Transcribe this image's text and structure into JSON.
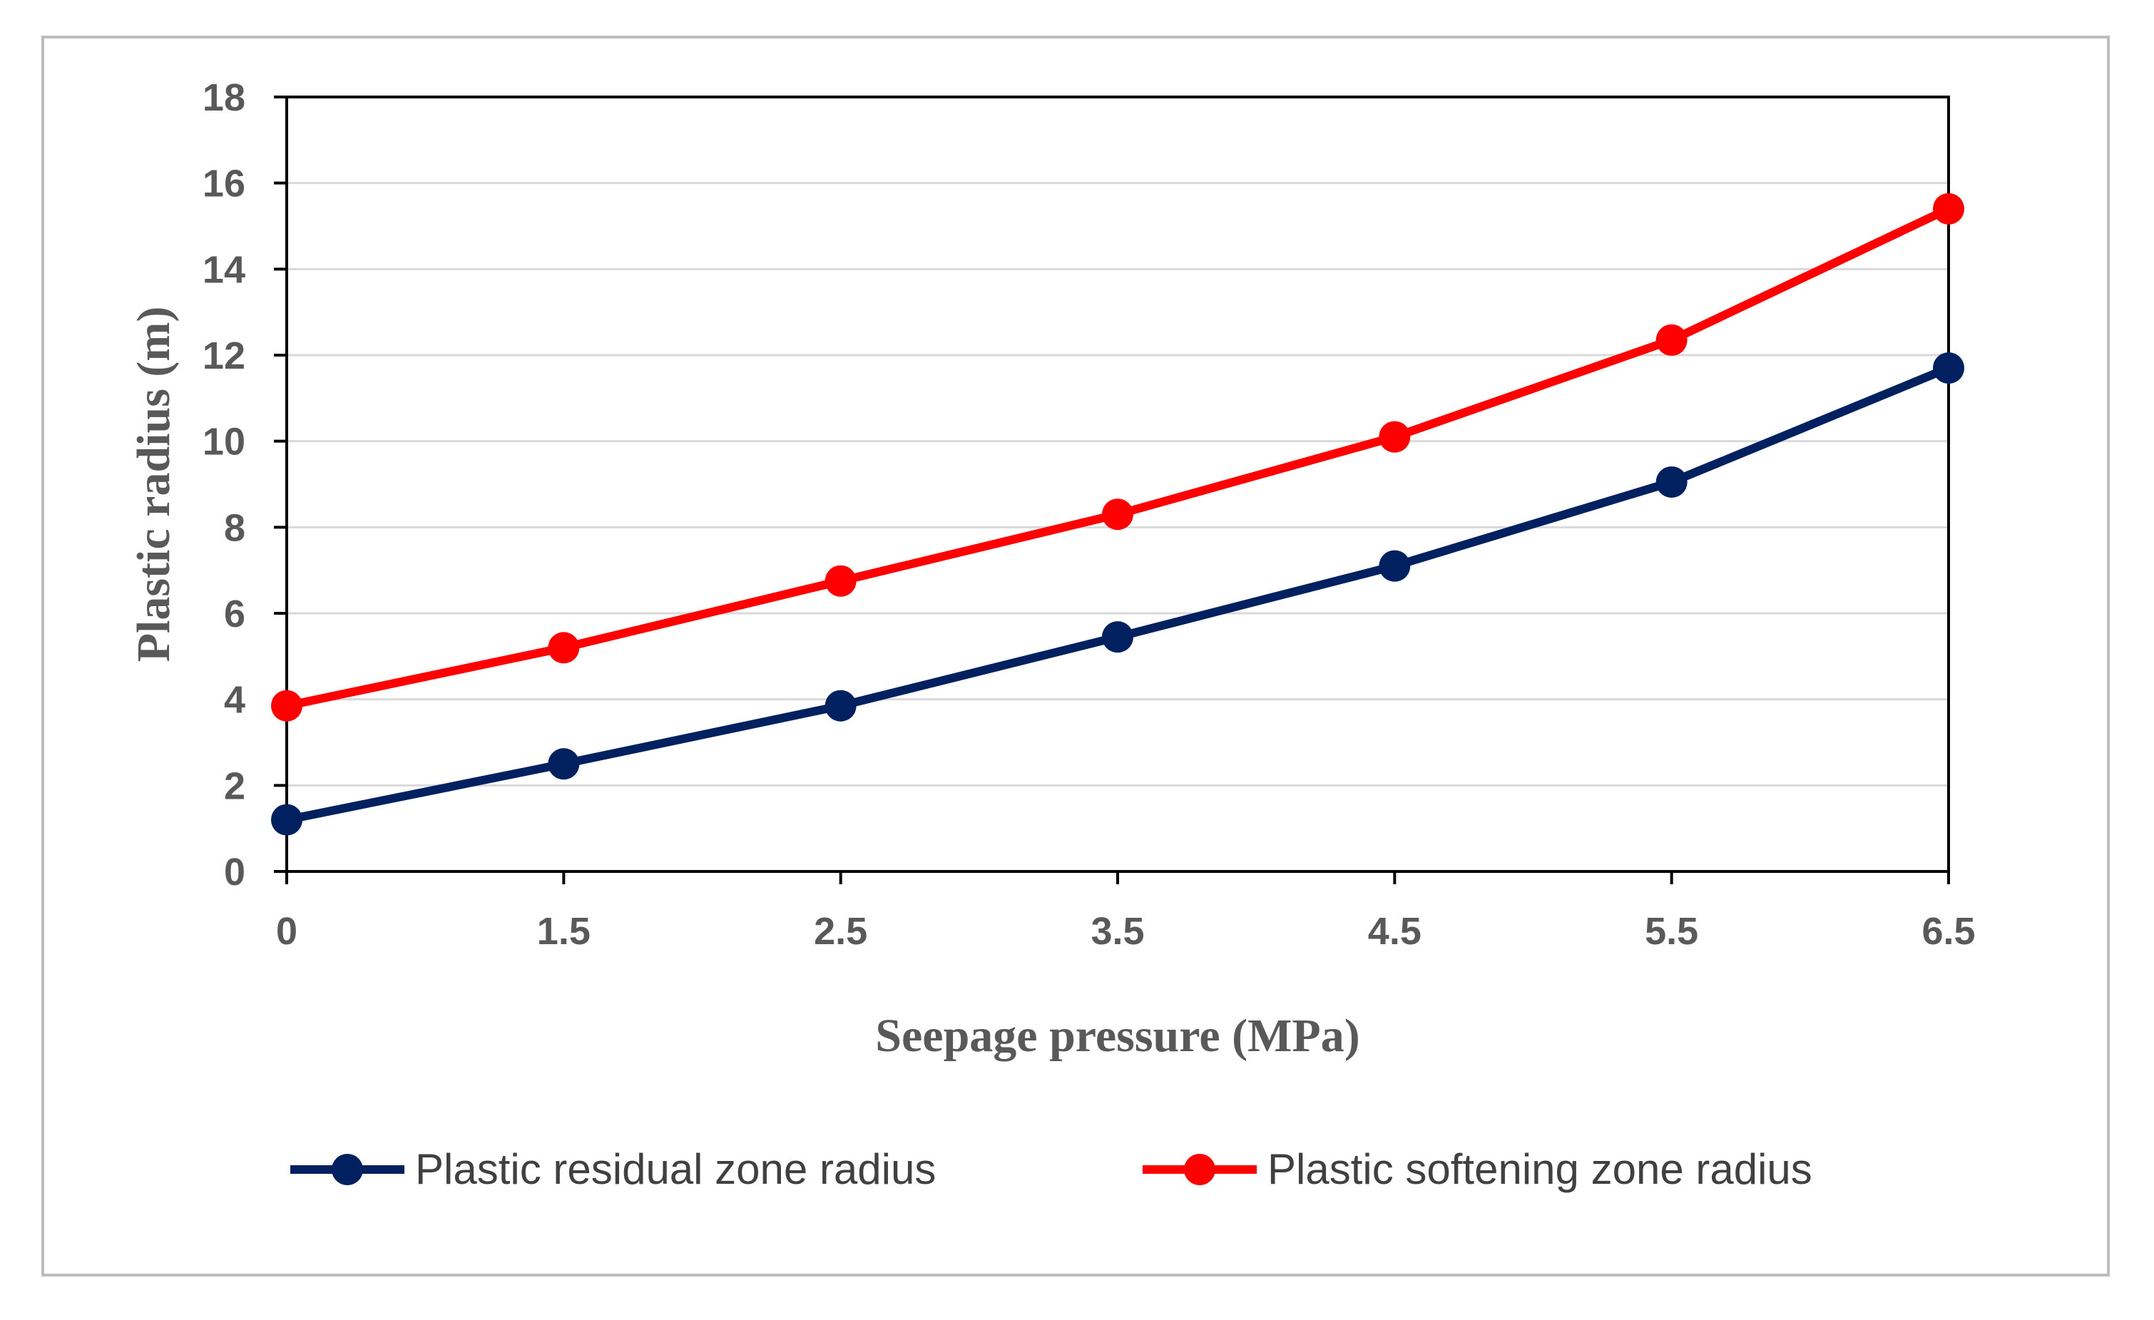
{
  "chart_data": {
    "type": "line",
    "categories": [
      "0",
      "1.5",
      "2.5",
      "3.5",
      "4.5",
      "5.5",
      "6.5"
    ],
    "series": [
      {
        "name": "Plastic residual zone radius",
        "color": "#002060",
        "values": [
          1.2,
          2.5,
          3.85,
          5.45,
          7.1,
          9.05,
          11.7
        ]
      },
      {
        "name": "Plastic softening zone radius",
        "color": "#ff0000",
        "values": [
          3.85,
          5.2,
          6.75,
          8.3,
          10.1,
          12.35,
          15.4
        ]
      }
    ],
    "xlabel": "Seepage pressure (MPa)",
    "ylabel": "Plastic radius (m)",
    "ylim": [
      0,
      18
    ],
    "yticks": [
      "0",
      "2",
      "4",
      "6",
      "8",
      "10",
      "12",
      "14",
      "16",
      "18"
    ],
    "grid": true,
    "legend": "bottom"
  }
}
